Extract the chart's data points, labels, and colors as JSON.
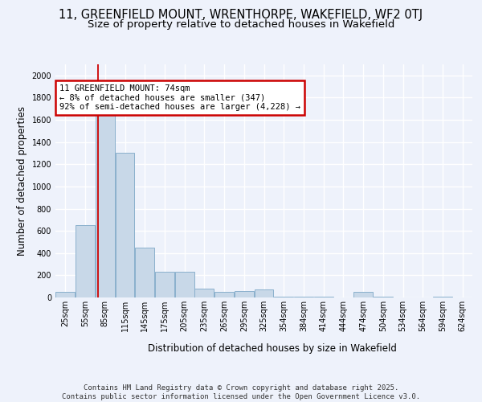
{
  "title_line1": "11, GREENFIELD MOUNT, WRENTHORPE, WAKEFIELD, WF2 0TJ",
  "title_line2": "Size of property relative to detached houses in Wakefield",
  "xlabel": "Distribution of detached houses by size in Wakefield",
  "ylabel": "Number of detached properties",
  "bar_color": "#c8d8e8",
  "bar_edge_color": "#8ab0cc",
  "annotation_box_text": "11 GREENFIELD MOUNT: 74sqm\n← 8% of detached houses are smaller (347)\n92% of semi-detached houses are larger (4,228) →",
  "annotation_box_color": "#ffffff",
  "annotation_box_edge_color": "#cc0000",
  "vline_color": "#cc0000",
  "vline_x_bin": 1,
  "footer_text": "Contains HM Land Registry data © Crown copyright and database right 2025.\nContains public sector information licensed under the Open Government Licence v3.0.",
  "categories": [
    "25sqm",
    "55sqm",
    "85sqm",
    "115sqm",
    "145sqm",
    "175sqm",
    "205sqm",
    "235sqm",
    "265sqm",
    "295sqm",
    "325sqm",
    "354sqm",
    "384sqm",
    "414sqm",
    "444sqm",
    "474sqm",
    "504sqm",
    "534sqm",
    "564sqm",
    "594sqm",
    "624sqm"
  ],
  "n_bins": 21,
  "values": [
    50,
    650,
    1650,
    1300,
    450,
    235,
    230,
    80,
    50,
    60,
    75,
    10,
    5,
    5,
    0,
    50,
    5,
    0,
    0,
    5,
    0
  ],
  "ylim": [
    0,
    2100
  ],
  "yticks": [
    0,
    200,
    400,
    600,
    800,
    1000,
    1200,
    1400,
    1600,
    1800,
    2000
  ],
  "background_color": "#eef2fb",
  "grid_color": "#ffffff",
  "title_fontsize": 10.5,
  "subtitle_fontsize": 9.5,
  "axis_label_fontsize": 8.5,
  "tick_fontsize": 7,
  "footer_fontsize": 6.5,
  "ann_fontsize": 7.5
}
